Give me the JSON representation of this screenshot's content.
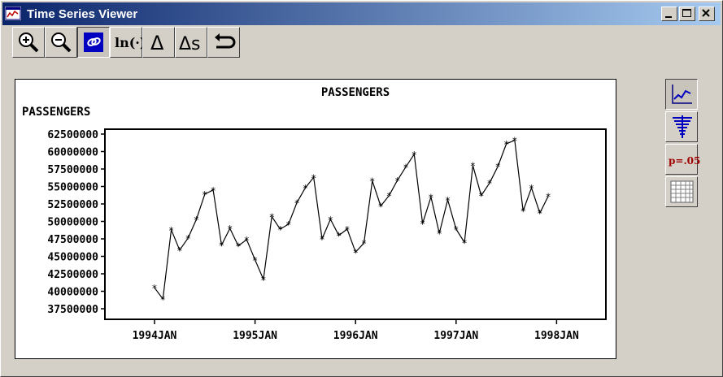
{
  "window": {
    "title": "Time Series Viewer"
  },
  "toolbar": {
    "buttons": [
      {
        "name": "zoom-in-icon"
      },
      {
        "name": "zoom-out-icon"
      },
      {
        "name": "link-icon",
        "pressed": true
      },
      {
        "name": "log-transform",
        "label": "ln(·)"
      },
      {
        "name": "difference-icon",
        "label": "Δ"
      },
      {
        "name": "seasonal-difference-icon",
        "label": "Δs"
      },
      {
        "name": "undo-icon"
      }
    ]
  },
  "side_toolbar": {
    "buttons": [
      {
        "name": "line-plot-icon",
        "pressed": true
      },
      {
        "name": "autocorrelation-icon"
      },
      {
        "name": "p-value",
        "label": "p=.05"
      },
      {
        "name": "table-icon"
      }
    ]
  },
  "chart_data": {
    "type": "line",
    "title": "PASSENGERS",
    "ylabel": "PASSENGERS",
    "xlabel": "",
    "ylim": [
      37500000,
      62500000
    ],
    "yticks": [
      37500000,
      40000000,
      42500000,
      45000000,
      47500000,
      50000000,
      52500000,
      55000000,
      57500000,
      60000000,
      62500000
    ],
    "ytick_labels": [
      "37500000",
      "40000000",
      "42500000",
      "45000000",
      "47500000",
      "50000000",
      "52500000",
      "55000000",
      "57500000",
      "60000000",
      "62500000"
    ],
    "xticks": [
      "1994JAN",
      "1995JAN",
      "1996JAN",
      "1997JAN",
      "1998JAN"
    ],
    "marker": "*",
    "series": [
      {
        "start": "1994JAN",
        "frequency": "monthly",
        "values": [
          40500000,
          38900000,
          48800000,
          45900000,
          47600000,
          50300000,
          53900000,
          54500000,
          46600000,
          49000000,
          46500000,
          47400000,
          44500000,
          41700000,
          50700000,
          48900000,
          49600000,
          52700000,
          54800000,
          56300000,
          47500000,
          50300000,
          48000000,
          48900000,
          45600000,
          46900000,
          55800000,
          52200000,
          53700000,
          55900000,
          57800000,
          59600000,
          49700000,
          53500000,
          48300000,
          53100000,
          48900000,
          47000000,
          58000000,
          53700000,
          55500000,
          57900000,
          61100000,
          61600000,
          51500000,
          54800000,
          51200000,
          53600000
        ]
      }
    ],
    "grid": false,
    "color": "#000000"
  }
}
